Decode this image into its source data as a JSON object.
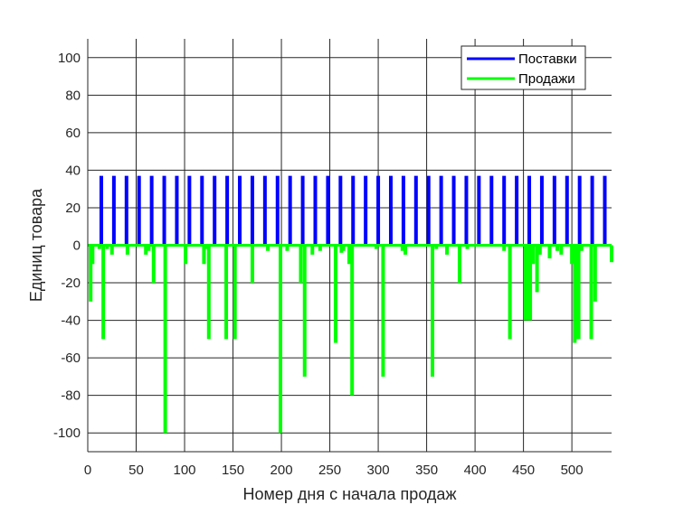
{
  "chart_data": {
    "type": "bar",
    "xlabel": "Номер дня с начала продаж",
    "ylabel": "Единиц товара",
    "xlim": [
      0,
      541
    ],
    "ylim": [
      -110,
      110
    ],
    "xticks": [
      0,
      50,
      100,
      150,
      200,
      250,
      300,
      350,
      400,
      450,
      500
    ],
    "yticks": [
      -100,
      -80,
      -60,
      -40,
      -20,
      0,
      20,
      40,
      60,
      80,
      100
    ],
    "grid": true,
    "legend_position": "top-right",
    "series": [
      {
        "name": "Поставки",
        "color": "#0000ff",
        "x": [
          14,
          27,
          40,
          53,
          66,
          79,
          92,
          105,
          118,
          131,
          144,
          157,
          170,
          183,
          196,
          209,
          222,
          235,
          248,
          261,
          274,
          287,
          300,
          313,
          326,
          339,
          352,
          365,
          378,
          391,
          404,
          417,
          430,
          443,
          456,
          469,
          482,
          495,
          508,
          521,
          534
        ],
        "values": [
          37,
          37,
          37,
          37,
          37,
          37,
          37,
          37,
          37,
          37,
          37,
          37,
          37,
          37,
          37,
          37,
          37,
          37,
          37,
          37,
          37,
          37,
          37,
          37,
          37,
          37,
          37,
          37,
          37,
          37,
          37,
          37,
          37,
          37,
          37,
          37,
          37,
          37,
          37,
          37,
          37
        ]
      },
      {
        "name": "Продажи",
        "color": "#00ff00",
        "x": [
          3,
          5,
          12,
          16,
          20,
          25,
          41,
          60,
          63,
          68,
          80,
          101,
          120,
          122,
          125,
          143,
          152,
          170,
          186,
          199,
          206,
          220,
          224,
          232,
          240,
          256,
          262,
          264,
          270,
          273,
          298,
          305,
          325,
          328,
          356,
          360,
          371,
          384,
          392,
          430,
          436,
          452,
          455,
          457,
          460,
          464,
          467,
          477,
          485,
          489,
          500,
          503,
          505,
          507,
          510,
          520,
          524,
          541
        ],
        "values": [
          -30,
          -10,
          -2,
          -50,
          -2,
          -5,
          -5,
          -5,
          -3,
          -20,
          -100,
          -10,
          -10,
          -2,
          -50,
          -50,
          -50,
          -20,
          -3,
          -100,
          -3,
          -20,
          -70,
          -5,
          -3,
          -52,
          -4,
          -3,
          -10,
          -80,
          -2,
          -70,
          -3,
          -5,
          -70,
          -2,
          -5,
          -20,
          -2,
          -3,
          -50,
          -40,
          -40,
          -40,
          -10,
          -25,
          -5,
          -7,
          -3,
          -5,
          -10,
          -52,
          -50,
          -50,
          -3,
          -50,
          -30,
          -9
        ]
      }
    ]
  }
}
